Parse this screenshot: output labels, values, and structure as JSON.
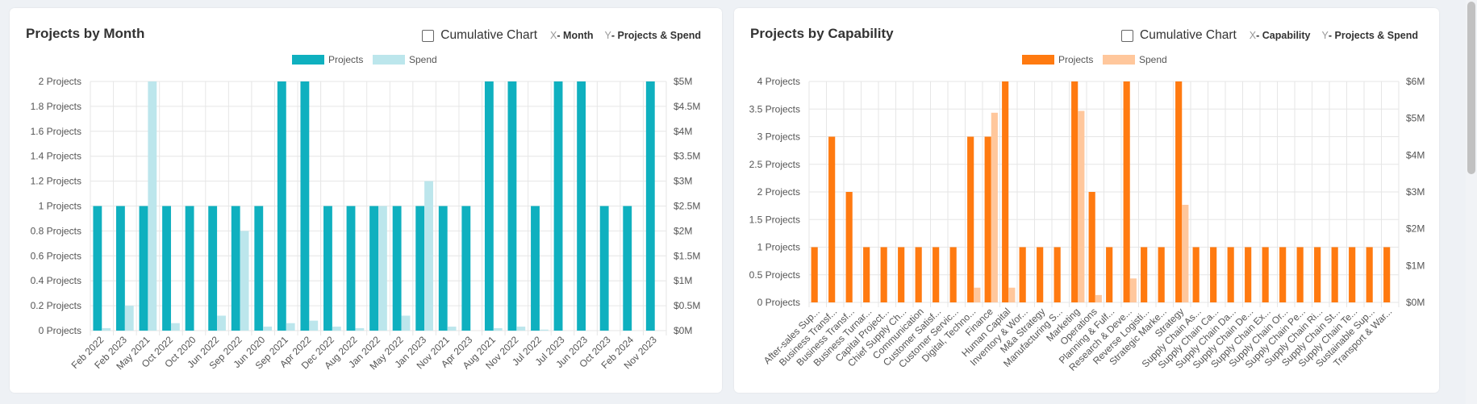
{
  "colors": {
    "projects_cyan": "#0fb0bf",
    "spend_cyan": "#bce6ec",
    "projects_orange": "#ff7a10",
    "spend_orange": "#ffc79c",
    "grid": "#e6e6e6",
    "tick": "#555555"
  },
  "card1": {
    "title": "Projects by Month",
    "cumulative_label": "Cumulative Chart",
    "x_letter": "X",
    "x_desc": "- Month",
    "y_letter": "Y",
    "y_desc": "- Projects & Spend"
  },
  "card2": {
    "title": "Projects by Capability",
    "cumulative_label": "Cumulative Chart",
    "x_letter": "X",
    "x_desc": "- Capability",
    "y_letter": "Y",
    "y_desc": "- Projects & Spend"
  },
  "chart_data": [
    {
      "type": "bar",
      "title": "Projects by Month",
      "legend_position": "top-center",
      "grid": true,
      "categories": [
        "Feb 2022",
        "Feb 2023",
        "May 2021",
        "Oct 2022",
        "Oct 2020",
        "Jun 2022",
        "Sep 2022",
        "Jun 2020",
        "Sep 2021",
        "Apr 2022",
        "Dec 2022",
        "Aug 2022",
        "Jan 2022",
        "May 2022",
        "Jan 2023",
        "Nov 2021",
        "Apr 2023",
        "Aug 2021",
        "Nov 2022",
        "Jul 2022",
        "Jul 2023",
        "Jun 2023",
        "Oct 2023",
        "Feb 2024",
        "Nov 2023"
      ],
      "series": [
        {
          "name": "Projects",
          "axis": "left",
          "values": [
            1,
            1,
            1,
            1,
            1,
            1,
            1,
            1,
            2,
            2,
            1,
            1,
            1,
            1,
            1,
            1,
            1,
            2,
            2,
            1,
            2,
            2,
            1,
            1,
            2
          ]
        },
        {
          "name": "Spend",
          "axis": "right",
          "values": [
            0.05,
            0.5,
            5.0,
            0.15,
            0,
            0.3,
            2.0,
            0.08,
            0.15,
            0.2,
            0.08,
            0.05,
            2.5,
            0.3,
            3.0,
            0.08,
            0,
            0.05,
            0.08,
            0.02,
            0,
            0,
            0,
            0,
            0
          ]
        }
      ],
      "left_axis": {
        "ylim": [
          0,
          2
        ],
        "ticks": [
          "0 Projects",
          "0.2 Projects",
          "0.4 Projects",
          "0.6 Projects",
          "0.8 Projects",
          "1 Projects",
          "1.2 Projects",
          "1.4 Projects",
          "1.6 Projects",
          "1.8 Projects",
          "2 Projects"
        ]
      },
      "right_axis": {
        "ylim": [
          0,
          5
        ],
        "ticks": [
          "$0M",
          "$0.5M",
          "$1M",
          "$1.5M",
          "$2M",
          "$2.5M",
          "$3M",
          "$3.5M",
          "$4M",
          "$4.5M",
          "$5M"
        ]
      }
    },
    {
      "type": "bar",
      "title": "Projects by Capability",
      "legend_position": "top-center",
      "grid": true,
      "categories": [
        "After-sales Sup...",
        "Business Transf...",
        "Business Transf...",
        "Business Turnar...",
        "Capital Project...",
        "Chief Supply Ch...",
        "Communication",
        "Customer Satisf...",
        "Customer Servic...",
        "Digital, Techno...",
        "Finance",
        "Human Capital",
        "Inventory & Wor...",
        "M&a Strategy",
        "Manufacturing S...",
        "Marketing",
        "Operations",
        "Planning & Fulf...",
        "Research & Deve...",
        "Reverse Logisti...",
        "Strategic Marke...",
        "Strategy",
        "Supply Chain As...",
        "Supply Chain Ca...",
        "Supply Chain Da...",
        "Supply Chain De...",
        "Supply Chain Ex...",
        "Supply Chain Or...",
        "Supply Chain Pe...",
        "Supply Chain Ri...",
        "Supply Chain St...",
        "Supply Chain Te...",
        "Sustainable Sup...",
        "Transport & War..."
      ],
      "series": [
        {
          "name": "Projects",
          "axis": "left",
          "values": [
            1,
            3,
            2,
            1,
            1,
            1,
            1,
            1,
            1,
            3,
            3,
            4,
            1,
            1,
            1,
            4,
            2,
            1,
            4,
            1,
            1,
            4,
            1,
            1,
            1,
            1,
            1,
            1,
            1,
            1,
            1,
            1,
            1,
            1
          ]
        },
        {
          "name": "Spend",
          "axis": "right",
          "values": [
            0,
            0,
            0,
            0,
            0,
            0,
            0,
            0,
            0,
            0.4,
            5.15,
            0.4,
            0,
            0,
            0,
            5.2,
            0.2,
            0,
            0.65,
            0,
            0,
            2.65,
            0,
            0,
            0,
            0,
            0,
            0,
            0,
            0,
            0,
            0,
            0,
            0
          ]
        }
      ],
      "left_axis": {
        "ylim": [
          0,
          4
        ],
        "ticks": [
          "0 Projects",
          "0.5 Projects",
          "1 Projects",
          "1.5 Projects",
          "2 Projects",
          "2.5 Projects",
          "3 Projects",
          "3.5 Projects",
          "4 Projects"
        ]
      },
      "right_axis": {
        "ylim": [
          0,
          6
        ],
        "ticks": [
          "$0M",
          "$1M",
          "$2M",
          "$3M",
          "$4M",
          "$5M",
          "$6M"
        ]
      }
    }
  ]
}
